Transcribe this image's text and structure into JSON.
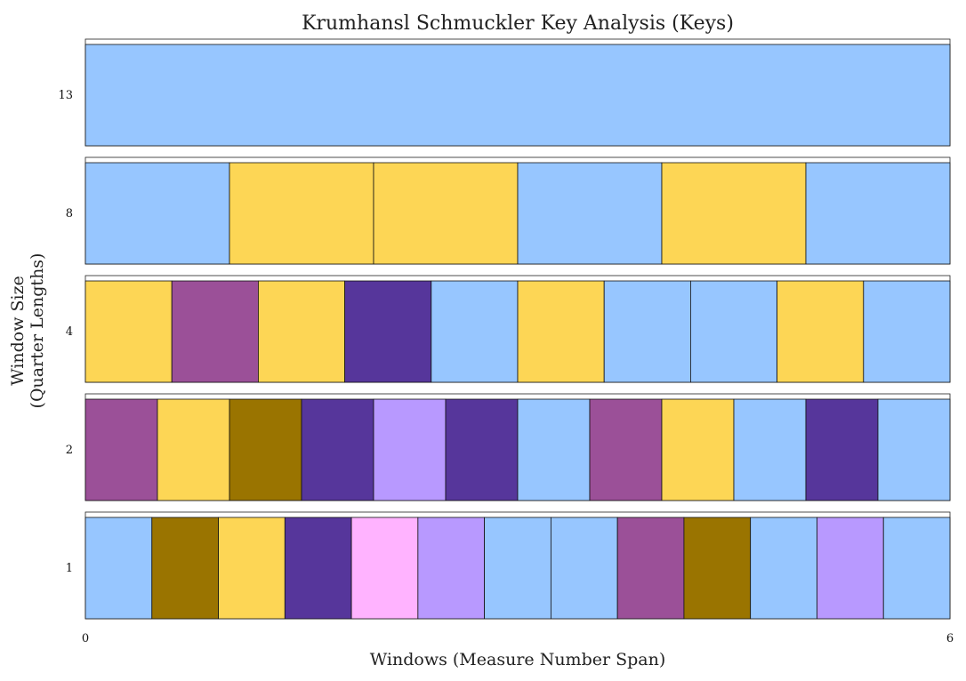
{
  "chart_data": {
    "type": "heatmap",
    "title": "Krumhansl Schmuckler Key Analysis (Keys)",
    "xlabel": "Windows (Measure Number Span)",
    "ylabel_lines": [
      "Window Size",
      "(Quarter Lengths)"
    ],
    "xlim": [
      0,
      6
    ],
    "x_ticks": [
      "0",
      "6"
    ],
    "rows": [
      {
        "window_size": "13",
        "cells": [
          "#97c6ff"
        ]
      },
      {
        "window_size": "8",
        "cells": [
          "#97c6ff",
          "#fdd655",
          "#fdd655",
          "#97c6ff",
          "#fdd655",
          "#97c6ff"
        ]
      },
      {
        "window_size": "4",
        "cells": [
          "#fdd655",
          "#9b5098",
          "#fdd655",
          "#56369b",
          "#97c6ff",
          "#fdd655",
          "#97c6ff",
          "#97c6ff",
          "#fdd655",
          "#97c6ff"
        ]
      },
      {
        "window_size": "2",
        "cells": [
          "#9b5098",
          "#fdd655",
          "#9a7400",
          "#56369b",
          "#b899ff",
          "#56369b",
          "#97c6ff",
          "#9b5098",
          "#fdd655",
          "#97c6ff",
          "#56369b",
          "#97c6ff"
        ]
      },
      {
        "window_size": "1",
        "cells": [
          "#97c6ff",
          "#9a7400",
          "#fdd655",
          "#56369b",
          "#ffb3ff",
          "#b899ff",
          "#97c6ff",
          "#97c6ff",
          "#9b5098",
          "#9a7400",
          "#97c6ff",
          "#b899ff",
          "#97c6ff"
        ]
      }
    ]
  }
}
